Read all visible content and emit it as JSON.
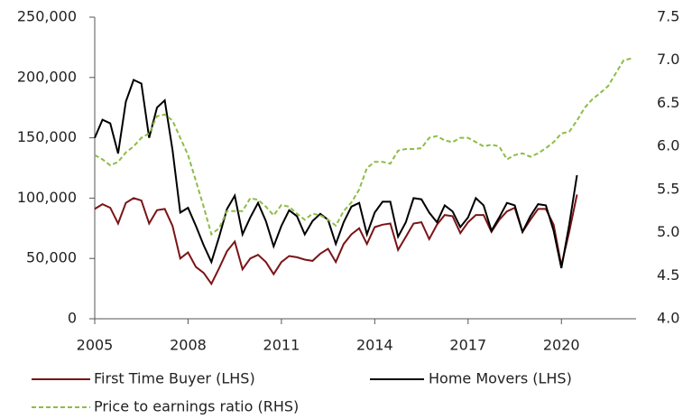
{
  "chart_data": {
    "type": "line",
    "x": [
      2005,
      2005.25,
      2005.5,
      2005.75,
      2006,
      2006.25,
      2006.5,
      2006.75,
      2007,
      2007.25,
      2007.5,
      2007.75,
      2008,
      2008.25,
      2008.5,
      2008.75,
      2009,
      2009.25,
      2009.5,
      2009.75,
      2010,
      2010.25,
      2010.5,
      2010.75,
      2011,
      2011.25,
      2011.5,
      2011.75,
      2012,
      2012.25,
      2012.5,
      2012.75,
      2013,
      2013.25,
      2013.5,
      2013.75,
      2014,
      2014.25,
      2014.5,
      2014.75,
      2015,
      2015.25,
      2015.5,
      2015.75,
      2016,
      2016.25,
      2016.5,
      2016.75,
      2017,
      2017.25,
      2017.5,
      2017.75,
      2018,
      2018.25,
      2018.5,
      2018.75,
      2019,
      2019.25,
      2019.5,
      2019.75,
      2020,
      2020.25,
      2020.5,
      2020.75,
      2021,
      2021.25,
      2021.5,
      2021.75,
      2022,
      2022.25
    ],
    "series": [
      {
        "name": "First Time Buyer (LHS)",
        "color": "#7b1416",
        "dash": false,
        "values": [
          91000,
          95000,
          92000,
          79000,
          96000,
          100000,
          98000,
          79000,
          90000,
          91000,
          77000,
          50000,
          55000,
          43000,
          38000,
          29000,
          42000,
          56000,
          64000,
          41000,
          50000,
          53000,
          47000,
          37000,
          47000,
          52000,
          51000,
          49000,
          48000,
          54000,
          58000,
          47000,
          62000,
          70000,
          75000,
          62000,
          76000,
          78000,
          79000,
          57000,
          68000,
          79000,
          80000,
          66000,
          78000,
          86000,
          85000,
          71000,
          80000,
          86000,
          86000,
          72000,
          82000,
          89000,
          92000,
          72000,
          82000,
          91000,
          91000,
          78000,
          44000,
          72000,
          103000,
          null,
          null,
          null,
          null,
          null,
          null,
          null
        ]
      },
      {
        "name": "Home Movers (LHS)",
        "color": "#000000",
        "dash": false,
        "values": [
          150000,
          165000,
          162000,
          137000,
          180000,
          198000,
          195000,
          150000,
          175000,
          181000,
          140000,
          88000,
          92000,
          77000,
          61000,
          47000,
          68000,
          91000,
          102000,
          70000,
          84000,
          96000,
          81000,
          60000,
          77000,
          90000,
          85000,
          70000,
          81000,
          87000,
          82000,
          62000,
          80000,
          93000,
          96000,
          70000,
          88000,
          97000,
          97000,
          68000,
          80000,
          100000,
          99000,
          88000,
          80000,
          94000,
          89000,
          76000,
          84000,
          100000,
          94000,
          73000,
          84000,
          96000,
          94000,
          72000,
          85000,
          95000,
          94000,
          73000,
          42000,
          78000,
          119000,
          null,
          null,
          null,
          null,
          null,
          null,
          null
        ]
      },
      {
        "name": "Price to earnings ratio (RHS)",
        "color": "#8fbc45",
        "dash": true,
        "axis": "y2",
        "values": [
          5.9,
          5.85,
          5.78,
          5.82,
          5.93,
          6.0,
          6.1,
          6.15,
          6.35,
          6.37,
          6.3,
          6.1,
          5.9,
          5.6,
          5.3,
          4.98,
          5.05,
          5.25,
          5.25,
          5.25,
          5.4,
          5.38,
          5.3,
          5.2,
          5.32,
          5.3,
          5.22,
          5.15,
          5.22,
          5.2,
          5.15,
          5.08,
          5.25,
          5.35,
          5.5,
          5.75,
          5.82,
          5.82,
          5.8,
          5.95,
          5.97,
          5.97,
          5.98,
          6.1,
          6.12,
          6.07,
          6.05,
          6.1,
          6.1,
          6.05,
          6.0,
          6.02,
          6.0,
          5.85,
          5.9,
          5.92,
          5.88,
          5.92,
          5.98,
          6.05,
          6.15,
          6.17,
          6.3,
          6.45,
          6.55,
          6.62,
          6.7,
          6.85,
          7.0,
          7.02
        ]
      }
    ],
    "xlim": [
      2005,
      2022.4
    ],
    "xticks": [
      2005,
      2008,
      2011,
      2014,
      2017,
      2020
    ],
    "ylim": [
      0,
      250000
    ],
    "yticks": [
      0,
      {
        "value": 50000,
        "label": "50,000"
      },
      {
        "value": 100000,
        "label": "100,000"
      },
      {
        "value": 150000,
        "label": "150,000"
      },
      {
        "value": 200000,
        "label": "200,000"
      },
      {
        "value": 250000,
        "label": "250,000"
      }
    ],
    "y2lim": [
      4,
      7.5
    ],
    "y2ticks": [
      {
        "value": 4,
        "label": "4.0"
      },
      {
        "value": 4.5,
        "label": "4.5"
      },
      {
        "value": 5,
        "label": "5.0"
      },
      {
        "value": 5.5,
        "label": "5.5"
      },
      {
        "value": 6,
        "label": "6.0"
      },
      {
        "value": 6.5,
        "label": "6.5"
      },
      {
        "value": 7,
        "label": "7.0"
      },
      {
        "value": 7.5,
        "label": "7.5"
      }
    ],
    "grid": false
  }
}
